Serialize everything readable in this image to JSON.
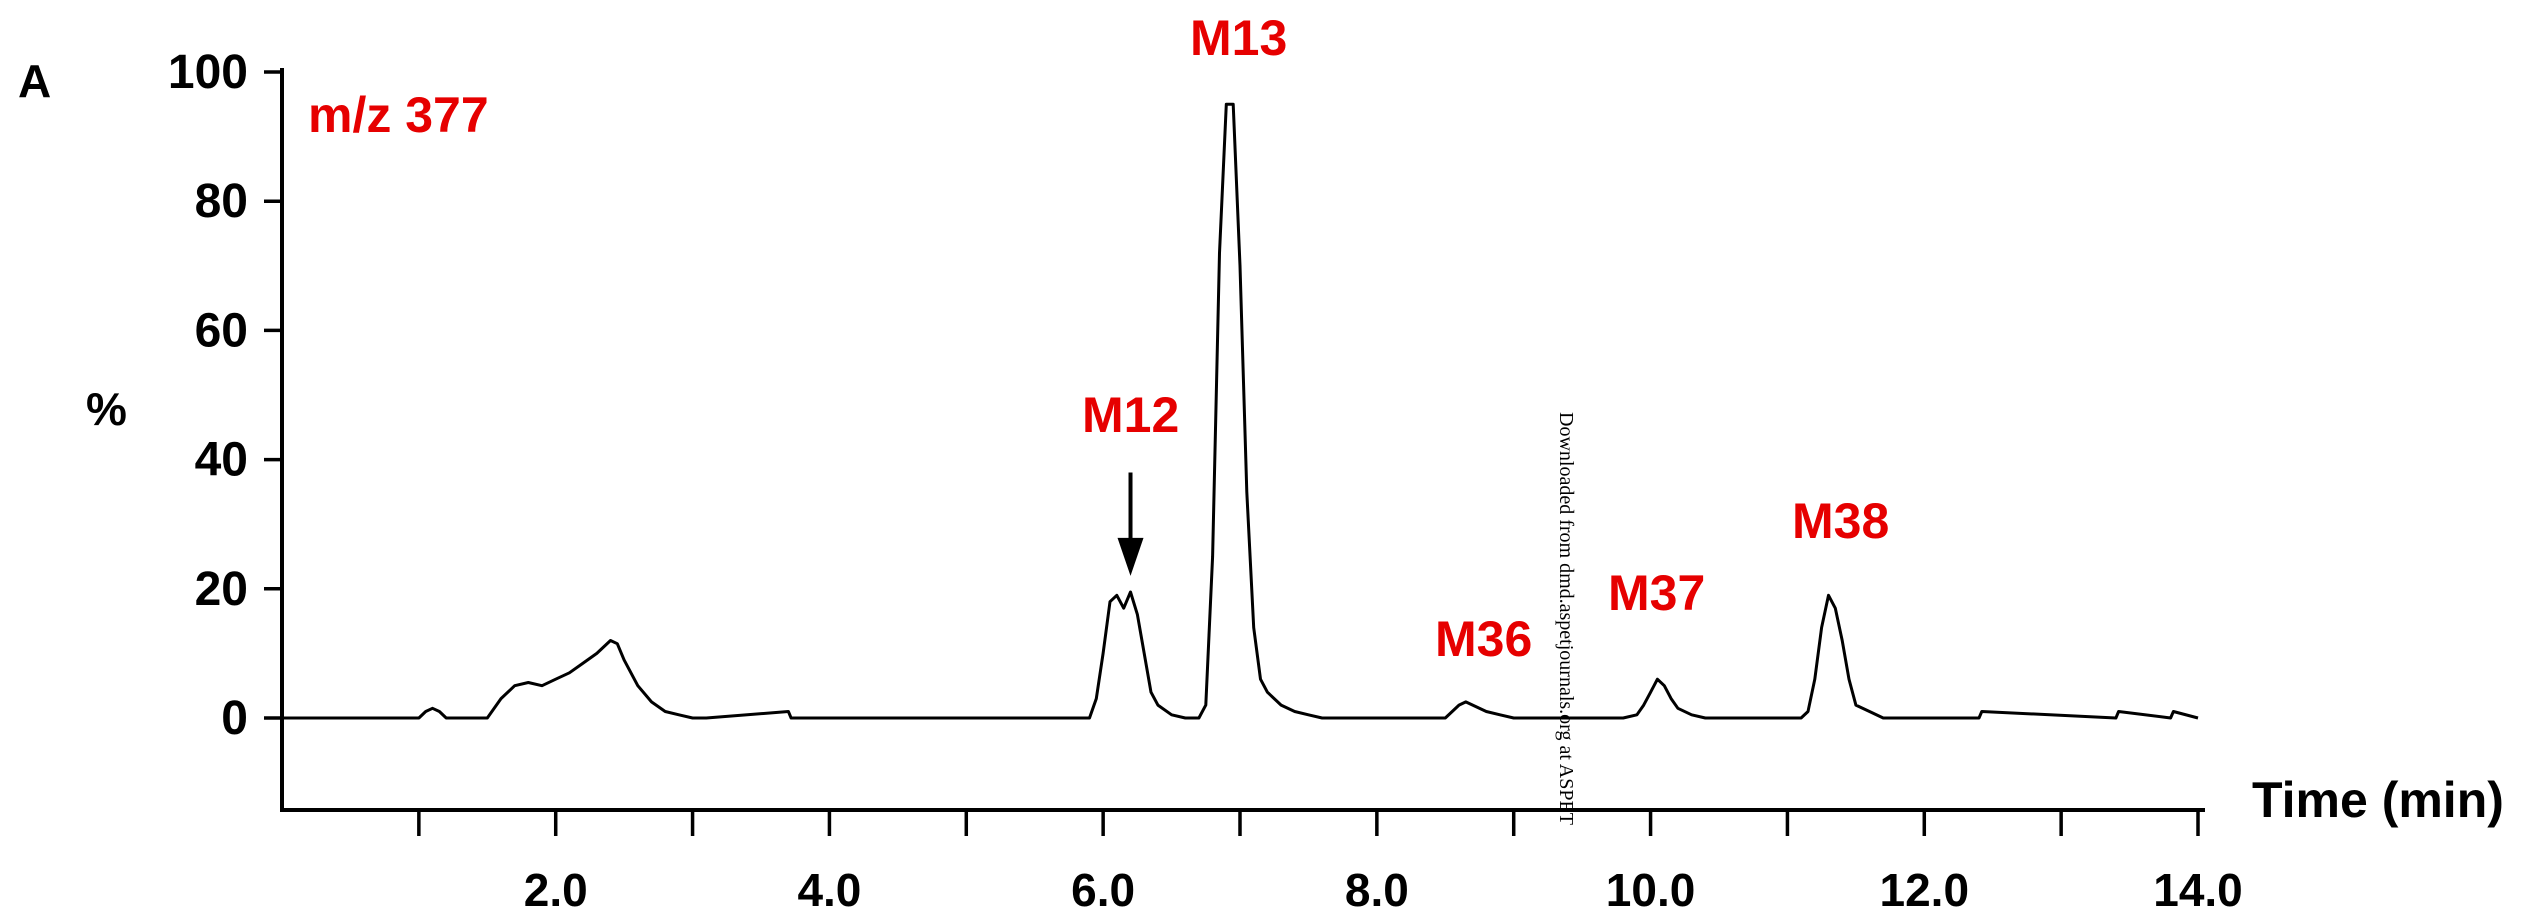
{
  "chart_data": {
    "type": "line",
    "panel_label": "A",
    "ylabel": "%",
    "xlabel": "Time (min)",
    "xlim": [
      0.0,
      14.0
    ],
    "ylim": [
      -14,
      100
    ],
    "x_ticks_minor": [
      1,
      2,
      3,
      4,
      5,
      6,
      7,
      8,
      9,
      10,
      11,
      12,
      13,
      14
    ],
    "x_tick_labels": [
      {
        "value": 2,
        "label": "2.0"
      },
      {
        "value": 4,
        "label": "4.0"
      },
      {
        "value": 6,
        "label": "6.0"
      },
      {
        "value": 8,
        "label": "8.0"
      },
      {
        "value": 10,
        "label": "10.0"
      },
      {
        "value": 12,
        "label": "12.0"
      },
      {
        "value": 14,
        "label": "14.0"
      }
    ],
    "y_tick_labels": [
      {
        "value": 0,
        "label": "0"
      },
      {
        "value": 20,
        "label": "20"
      },
      {
        "value": 40,
        "label": "40"
      },
      {
        "value": 60,
        "label": "60"
      },
      {
        "value": 80,
        "label": "80"
      },
      {
        "value": 100,
        "label": "100"
      }
    ],
    "grid": false,
    "series": [
      {
        "color": "#000000",
        "x": [
          1.0,
          1.05,
          1.1,
          1.15,
          1.2,
          1.5,
          1.6,
          1.7,
          1.8,
          1.9,
          2.0,
          2.1,
          2.2,
          2.3,
          2.4,
          2.45,
          2.5,
          2.6,
          2.7,
          2.8,
          2.9,
          3.0,
          3.1,
          3.7,
          3.72,
          5.9,
          5.95,
          6.0,
          6.05,
          6.1,
          6.15,
          6.2,
          6.25,
          6.3,
          6.35,
          6.4,
          6.5,
          6.6,
          6.7,
          6.75,
          6.8,
          6.85,
          6.9,
          6.95,
          7.0,
          7.05,
          7.1,
          7.15,
          7.2,
          7.3,
          7.4,
          7.5,
          7.6,
          7.7,
          8.0,
          8.5,
          8.6,
          8.65,
          8.7,
          8.8,
          8.9,
          9.0,
          9.8,
          9.9,
          9.95,
          10.0,
          10.05,
          10.1,
          10.15,
          10.2,
          10.3,
          10.4,
          11.1,
          11.15,
          11.2,
          11.25,
          11.3,
          11.35,
          11.4,
          11.45,
          11.5,
          11.6,
          11.7,
          12.4,
          12.42,
          13.4,
          13.42,
          13.8,
          13.82,
          14.0
        ],
        "values": [
          0,
          1,
          1.5,
          1,
          0,
          0,
          3,
          5,
          5.5,
          5,
          6,
          7,
          8.5,
          10,
          12,
          11.5,
          9,
          5,
          2.5,
          1,
          0.5,
          0,
          0,
          1,
          0,
          0,
          3,
          10,
          18,
          19,
          17,
          19.5,
          16,
          10,
          4,
          2,
          0.5,
          0,
          0,
          2,
          25,
          72,
          95,
          95,
          70,
          35,
          14,
          6,
          4,
          2,
          1,
          0.5,
          0,
          0,
          0,
          0,
          2,
          2.5,
          2,
          1,
          0.5,
          0,
          0,
          0.5,
          2,
          4,
          6,
          5,
          3,
          1.5,
          0.5,
          0,
          0,
          1,
          6,
          14,
          19,
          17,
          12,
          6,
          2,
          1,
          0,
          0,
          1,
          0,
          1,
          0,
          1,
          0
        ]
      }
    ],
    "annotations": [
      {
        "text": "m/z 377",
        "x": 0.2,
        "y": 93
      },
      {
        "text": "M12",
        "x": 6.2,
        "y": 42
      },
      {
        "text": "M13",
        "x": 6.0,
        "y": 100
      },
      {
        "text": "M36",
        "x": 8.1,
        "y": 9
      },
      {
        "text": "M37",
        "x": 9.55,
        "y": 17
      },
      {
        "text": "M38",
        "x": 11.1,
        "y": 27
      }
    ],
    "arrow": {
      "x": 6.2,
      "y_from": 38,
      "y_to": 22
    },
    "watermark": "Downloaded from dmd.aspetjournals.org at ASPET"
  }
}
